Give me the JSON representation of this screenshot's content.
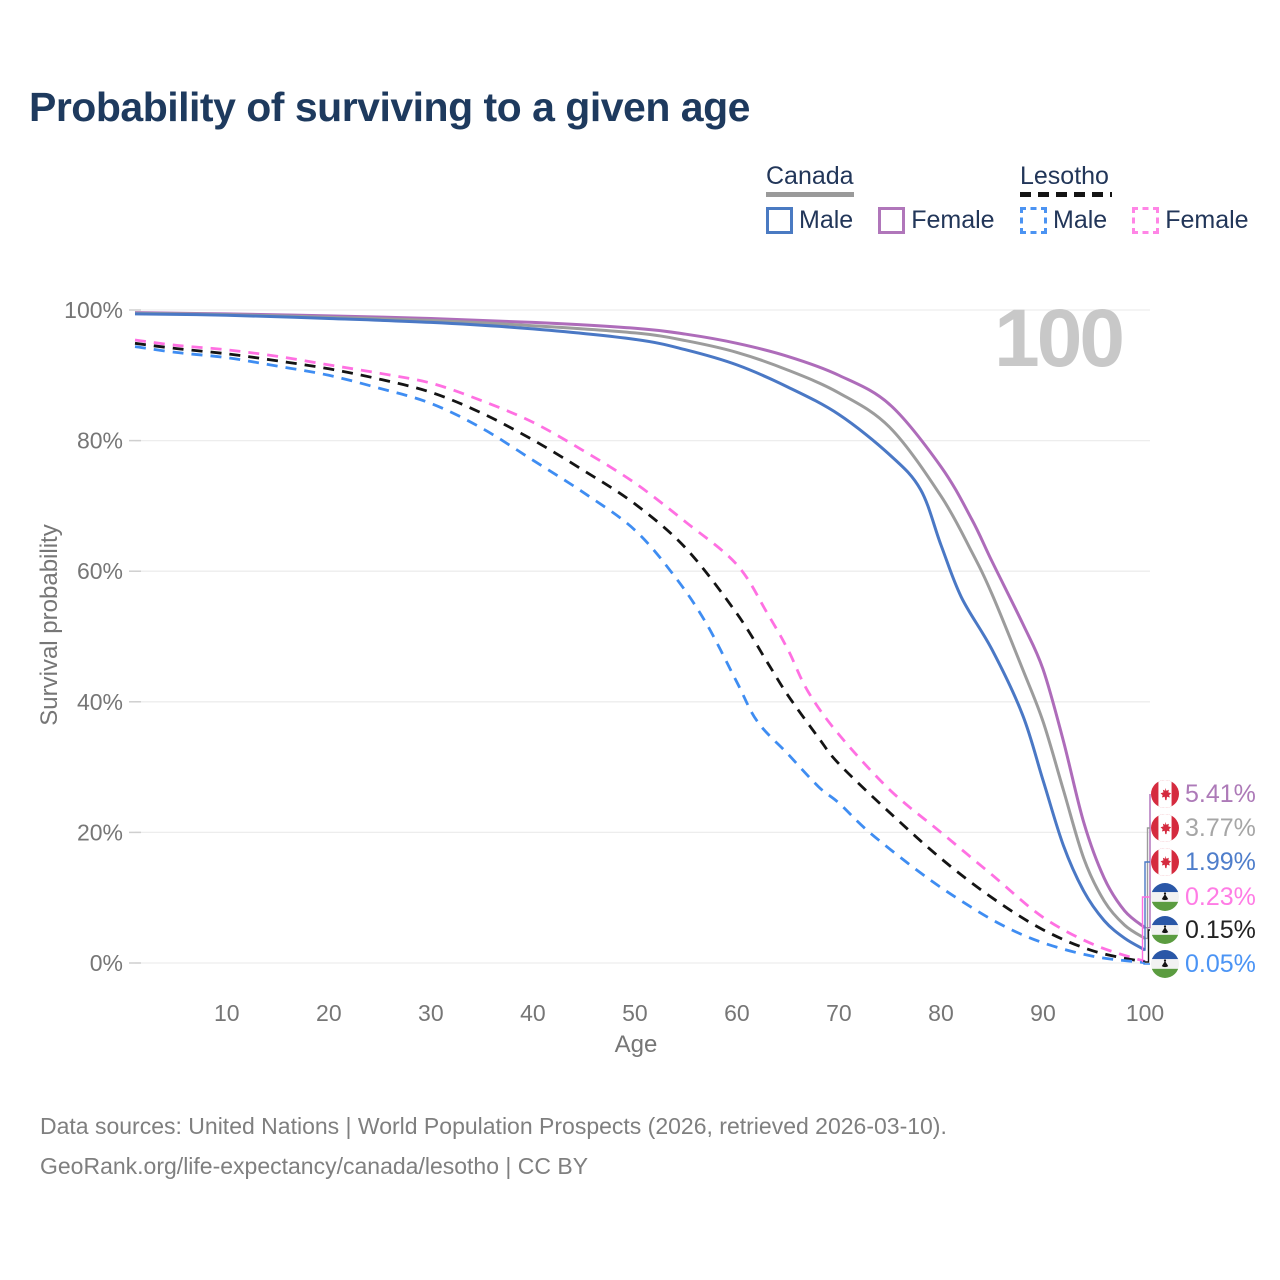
{
  "title": "Probability of surviving to a given age",
  "watermark": "100",
  "legend": {
    "groups": [
      {
        "label": "Canada",
        "line_style": "solid",
        "underline_color": "#9a9a9a",
        "items": [
          {
            "label": "Male",
            "color": "#4a7ac2"
          },
          {
            "label": "Female",
            "color": "#b076ba"
          }
        ]
      },
      {
        "label": "Lesotho",
        "line_style": "dashed",
        "underline_color": "#141414",
        "items": [
          {
            "label": "Male",
            "color": "#4b93f2"
          },
          {
            "label": "Female",
            "color": "#ff85e6"
          }
        ]
      }
    ]
  },
  "axes": {
    "x_label": "Age",
    "y_label": "Survival probability",
    "x_ticks": [
      10,
      20,
      30,
      40,
      50,
      60,
      70,
      80,
      90,
      100
    ],
    "y_ticks": [
      0,
      20,
      40,
      60,
      80,
      100
    ],
    "y_tick_suffix": "%"
  },
  "end_labels": [
    {
      "flag": "canada-flag-icon",
      "value": "5.41%",
      "color": "#ad7ab8"
    },
    {
      "flag": "canada-flag-icon",
      "value": "3.77%",
      "color": "#a6a6a6"
    },
    {
      "flag": "canada-flag-icon",
      "value": "1.99%",
      "color": "#4f7ecb"
    },
    {
      "flag": "lesotho-flag-icon",
      "value": "0.23%",
      "color": "#ff7ce5"
    },
    {
      "flag": "lesotho-flag-icon",
      "value": "0.15%",
      "color": "#222222"
    },
    {
      "flag": "lesotho-flag-icon",
      "value": "0.05%",
      "color": "#4b94f5"
    }
  ],
  "source": {
    "line1": "Data sources: United Nations | World Population Prospects (2026, retrieved 2026-03-10).",
    "line2": "GeoRank.org/life-expectancy/canada/lesotho | CC BY"
  },
  "chart_data": {
    "type": "line",
    "title": "Probability of surviving to a given age",
    "xlabel": "Age",
    "ylabel": "Survival probability",
    "xlim": [
      1,
      100
    ],
    "ylim": [
      0,
      100
    ],
    "grid": true,
    "legend_position": "top-right",
    "series": [
      {
        "name": "Canada Female",
        "color": "#ae6cba",
        "dashed": false,
        "end_label": "5.41%",
        "points": [
          [
            1,
            99.6
          ],
          [
            10,
            99.4
          ],
          [
            20,
            99.1
          ],
          [
            30,
            98.7
          ],
          [
            40,
            98.1
          ],
          [
            50,
            97.2
          ],
          [
            55,
            96.3
          ],
          [
            60,
            94.9
          ],
          [
            65,
            92.9
          ],
          [
            70,
            90.0
          ],
          [
            75,
            85.5
          ],
          [
            80,
            76.0
          ],
          [
            83,
            68.0
          ],
          [
            85,
            61.5
          ],
          [
            88,
            52.0
          ],
          [
            90,
            45.0
          ],
          [
            92,
            34.0
          ],
          [
            94,
            21.5
          ],
          [
            96,
            13.0
          ],
          [
            98,
            8.0
          ],
          [
            100,
            5.41
          ]
        ]
      },
      {
        "name": "Canada Both sexes",
        "color": "#9c9c9c",
        "dashed": false,
        "end_label": "3.77%",
        "points": [
          [
            1,
            99.5
          ],
          [
            10,
            99.3
          ],
          [
            20,
            98.9
          ],
          [
            30,
            98.4
          ],
          [
            40,
            97.6
          ],
          [
            50,
            96.5
          ],
          [
            55,
            95.3
          ],
          [
            60,
            93.5
          ],
          [
            65,
            90.8
          ],
          [
            70,
            87.3
          ],
          [
            75,
            82.0
          ],
          [
            80,
            71.5
          ],
          [
            83,
            63.0
          ],
          [
            85,
            56.5
          ],
          [
            88,
            45.0
          ],
          [
            90,
            37.0
          ],
          [
            92,
            26.5
          ],
          [
            94,
            16.0
          ],
          [
            96,
            9.5
          ],
          [
            98,
            5.8
          ],
          [
            100,
            3.77
          ]
        ]
      },
      {
        "name": "Canada Male",
        "color": "#4a78c5",
        "dashed": false,
        "end_label": "1.99%",
        "points": [
          [
            1,
            99.4
          ],
          [
            10,
            99.2
          ],
          [
            20,
            98.7
          ],
          [
            30,
            98.1
          ],
          [
            40,
            97.1
          ],
          [
            50,
            95.5
          ],
          [
            55,
            93.9
          ],
          [
            60,
            91.6
          ],
          [
            65,
            88.2
          ],
          [
            70,
            84.0
          ],
          [
            75,
            77.8
          ],
          [
            78,
            72.5
          ],
          [
            80,
            64.0
          ],
          [
            82,
            56.0
          ],
          [
            85,
            48.0
          ],
          [
            88,
            38.0
          ],
          [
            90,
            28.0
          ],
          [
            92,
            18.0
          ],
          [
            94,
            11.0
          ],
          [
            96,
            6.5
          ],
          [
            98,
            3.8
          ],
          [
            100,
            1.99
          ]
        ]
      },
      {
        "name": "Lesotho Female",
        "color": "#ff70e2",
        "dashed": true,
        "end_label": "0.23%",
        "points": [
          [
            1,
            95.4
          ],
          [
            5,
            94.6
          ],
          [
            10,
            93.9
          ],
          [
            15,
            92.9
          ],
          [
            20,
            91.6
          ],
          [
            25,
            90.3
          ],
          [
            30,
            88.8
          ],
          [
            35,
            86.1
          ],
          [
            40,
            82.8
          ],
          [
            45,
            78.4
          ],
          [
            50,
            73.5
          ],
          [
            55,
            67.5
          ],
          [
            60,
            61.0
          ],
          [
            63,
            53.5
          ],
          [
            65,
            48.0
          ],
          [
            67,
            41.5
          ],
          [
            70,
            35.0
          ],
          [
            75,
            26.5
          ],
          [
            80,
            20.0
          ],
          [
            85,
            13.5
          ],
          [
            90,
            7.0
          ],
          [
            95,
            2.8
          ],
          [
            100,
            0.23
          ]
        ]
      },
      {
        "name": "Lesotho Both sexes",
        "color": "#141414",
        "dashed": true,
        "end_label": "0.15%",
        "points": [
          [
            1,
            94.9
          ],
          [
            5,
            94.1
          ],
          [
            10,
            93.3
          ],
          [
            15,
            92.2
          ],
          [
            20,
            91.0
          ],
          [
            25,
            89.4
          ],
          [
            30,
            87.4
          ],
          [
            35,
            84.2
          ],
          [
            40,
            80.1
          ],
          [
            45,
            75.4
          ],
          [
            50,
            70.3
          ],
          [
            55,
            63.5
          ],
          [
            60,
            53.5
          ],
          [
            63,
            46.0
          ],
          [
            65,
            41.0
          ],
          [
            68,
            34.5
          ],
          [
            70,
            30.5
          ],
          [
            75,
            23.0
          ],
          [
            80,
            16.0
          ],
          [
            85,
            10.0
          ],
          [
            90,
            5.1
          ],
          [
            95,
            1.8
          ],
          [
            100,
            0.15
          ]
        ]
      },
      {
        "name": "Lesotho Male",
        "color": "#3f8df2",
        "dashed": true,
        "end_label": "0.05%",
        "points": [
          [
            1,
            94.4
          ],
          [
            5,
            93.5
          ],
          [
            10,
            92.7
          ],
          [
            15,
            91.4
          ],
          [
            20,
            90.0
          ],
          [
            25,
            88.0
          ],
          [
            30,
            85.7
          ],
          [
            35,
            81.9
          ],
          [
            40,
            77.0
          ],
          [
            45,
            72.0
          ],
          [
            50,
            66.3
          ],
          [
            54,
            59.0
          ],
          [
            57,
            52.0
          ],
          [
            60,
            43.0
          ],
          [
            62,
            37.0
          ],
          [
            65,
            32.0
          ],
          [
            68,
            27.0
          ],
          [
            70,
            24.5
          ],
          [
            73,
            20.0
          ],
          [
            78,
            13.8
          ],
          [
            82,
            9.5
          ],
          [
            86,
            5.8
          ],
          [
            90,
            3.1
          ],
          [
            95,
            1.0
          ],
          [
            100,
            0.05
          ]
        ]
      }
    ]
  }
}
